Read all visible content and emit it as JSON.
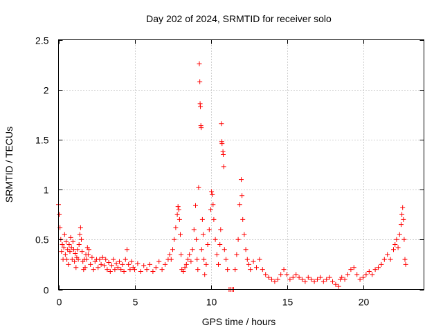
{
  "chart_data": {
    "type": "scatter",
    "title": "Day 202 of 2024, SRMTID for receiver solo",
    "xlabel": "GPS time / hours",
    "ylabel": "SRMTID / TECUs",
    "xlim": [
      0,
      24
    ],
    "ylim": [
      0,
      2.5
    ],
    "xticks": [
      0,
      5,
      10,
      15,
      20
    ],
    "yticks": [
      0,
      0.5,
      1,
      1.5,
      2,
      2.5
    ],
    "xtick_labels": [
      "0",
      "5",
      "10",
      "15",
      "20"
    ],
    "ytick_labels": [
      "0",
      "0.5",
      "1",
      "1.5",
      "2",
      "2.5"
    ],
    "grid": true,
    "marker": "+",
    "color": "#ff0000",
    "series": [
      {
        "name": "SRMTID",
        "points": [
          [
            0.0,
            0.85
          ],
          [
            0.05,
            0.75
          ],
          [
            0.1,
            0.62
          ],
          [
            0.15,
            0.5
          ],
          [
            0.2,
            0.38
          ],
          [
            0.25,
            0.45
          ],
          [
            0.3,
            0.3
          ],
          [
            0.35,
            0.42
          ],
          [
            0.4,
            0.55
          ],
          [
            0.45,
            0.35
          ],
          [
            0.5,
            0.48
          ],
          [
            0.55,
            0.3
          ],
          [
            0.6,
            0.4
          ],
          [
            0.65,
            0.25
          ],
          [
            0.7,
            0.45
          ],
          [
            0.75,
            0.38
          ],
          [
            0.8,
            0.52
          ],
          [
            0.85,
            0.42
          ],
          [
            0.9,
            0.3
          ],
          [
            0.95,
            0.48
          ],
          [
            1.0,
            0.4
          ],
          [
            1.05,
            0.28
          ],
          [
            1.1,
            0.36
          ],
          [
            1.15,
            0.22
          ],
          [
            1.2,
            0.32
          ],
          [
            1.25,
            0.4
          ],
          [
            1.3,
            0.3
          ],
          [
            1.35,
            0.45
          ],
          [
            1.4,
            0.55
          ],
          [
            1.45,
            0.62
          ],
          [
            1.5,
            0.5
          ],
          [
            1.55,
            0.38
          ],
          [
            1.6,
            0.28
          ],
          [
            1.65,
            0.2
          ],
          [
            1.7,
            0.3
          ],
          [
            1.75,
            0.22
          ],
          [
            1.8,
            0.35
          ],
          [
            1.85,
            0.3
          ],
          [
            1.9,
            0.42
          ],
          [
            1.95,
            0.35
          ],
          [
            2.0,
            0.4
          ],
          [
            2.1,
            0.25
          ],
          [
            2.2,
            0.32
          ],
          [
            2.3,
            0.2
          ],
          [
            2.4,
            0.28
          ],
          [
            2.5,
            0.3
          ],
          [
            2.6,
            0.22
          ],
          [
            2.7,
            0.3
          ],
          [
            2.8,
            0.25
          ],
          [
            2.9,
            0.32
          ],
          [
            3.0,
            0.24
          ],
          [
            3.1,
            0.3
          ],
          [
            3.2,
            0.2
          ],
          [
            3.3,
            0.27
          ],
          [
            3.4,
            0.18
          ],
          [
            3.5,
            0.24
          ],
          [
            3.6,
            0.3
          ],
          [
            3.7,
            0.2
          ],
          [
            3.8,
            0.26
          ],
          [
            3.9,
            0.22
          ],
          [
            4.0,
            0.28
          ],
          [
            4.1,
            0.2
          ],
          [
            4.2,
            0.25
          ],
          [
            4.3,
            0.18
          ],
          [
            4.4,
            0.3
          ],
          [
            4.5,
            0.4
          ],
          [
            4.6,
            0.25
          ],
          [
            4.7,
            0.2
          ],
          [
            4.8,
            0.28
          ],
          [
            4.9,
            0.22
          ],
          [
            5.0,
            0.2
          ],
          [
            5.2,
            0.26
          ],
          [
            5.4,
            0.18
          ],
          [
            5.6,
            0.24
          ],
          [
            5.8,
            0.2
          ],
          [
            6.0,
            0.25
          ],
          [
            6.2,
            0.18
          ],
          [
            6.4,
            0.22
          ],
          [
            6.6,
            0.28
          ],
          [
            6.8,
            0.2
          ],
          [
            7.0,
            0.25
          ],
          [
            7.2,
            0.3
          ],
          [
            7.3,
            0.35
          ],
          [
            7.4,
            0.3
          ],
          [
            7.5,
            0.4
          ],
          [
            7.6,
            0.5
          ],
          [
            7.7,
            0.62
          ],
          [
            7.8,
            0.75
          ],
          [
            7.85,
            0.83
          ],
          [
            7.9,
            0.8
          ],
          [
            7.95,
            0.7
          ],
          [
            8.0,
            0.55
          ],
          [
            8.05,
            0.35
          ],
          [
            8.1,
            0.2
          ],
          [
            8.2,
            0.18
          ],
          [
            8.3,
            0.22
          ],
          [
            8.4,
            0.25
          ],
          [
            8.5,
            0.3
          ],
          [
            8.6,
            0.35
          ],
          [
            8.7,
            0.28
          ],
          [
            8.8,
            0.4
          ],
          [
            8.9,
            0.6
          ],
          [
            9.0,
            0.84
          ],
          [
            9.05,
            0.5
          ],
          [
            9.1,
            0.3
          ],
          [
            9.15,
            0.2
          ],
          [
            9.2,
            1.02
          ],
          [
            9.25,
            2.26
          ],
          [
            9.28,
            2.08
          ],
          [
            9.3,
            1.86
          ],
          [
            9.32,
            1.83
          ],
          [
            9.35,
            1.64
          ],
          [
            9.37,
            1.62
          ],
          [
            9.4,
            0.4
          ],
          [
            9.45,
            0.7
          ],
          [
            9.5,
            0.55
          ],
          [
            9.55,
            0.3
          ],
          [
            9.6,
            0.15
          ],
          [
            9.7,
            0.25
          ],
          [
            9.8,
            0.45
          ],
          [
            9.9,
            0.6
          ],
          [
            10.0,
            0.8
          ],
          [
            10.05,
            0.98
          ],
          [
            10.1,
            0.95
          ],
          [
            10.15,
            0.85
          ],
          [
            10.2,
            0.7
          ],
          [
            10.3,
            0.5
          ],
          [
            10.4,
            0.35
          ],
          [
            10.5,
            0.25
          ],
          [
            10.6,
            0.45
          ],
          [
            10.65,
            0.6
          ],
          [
            10.7,
            1.66
          ],
          [
            10.72,
            1.48
          ],
          [
            10.74,
            1.46
          ],
          [
            10.8,
            1.38
          ],
          [
            10.82,
            1.35
          ],
          [
            10.85,
            1.23
          ],
          [
            10.9,
            0.4
          ],
          [
            11.0,
            0.3
          ],
          [
            11.1,
            0.2
          ],
          [
            11.2,
            0.0
          ],
          [
            11.3,
            0.0
          ],
          [
            11.4,
            0.0
          ],
          [
            11.5,
            0.0
          ],
          [
            11.6,
            0.2
          ],
          [
            11.7,
            0.35
          ],
          [
            11.8,
            0.5
          ],
          [
            11.9,
            0.85
          ],
          [
            12.0,
            1.1
          ],
          [
            12.05,
            0.94
          ],
          [
            12.1,
            0.7
          ],
          [
            12.2,
            0.55
          ],
          [
            12.3,
            0.4
          ],
          [
            12.4,
            0.3
          ],
          [
            12.5,
            0.25
          ],
          [
            12.6,
            0.2
          ],
          [
            12.8,
            0.28
          ],
          [
            13.0,
            0.22
          ],
          [
            13.2,
            0.3
          ],
          [
            13.4,
            0.2
          ],
          [
            13.6,
            0.15
          ],
          [
            13.8,
            0.12
          ],
          [
            14.0,
            0.1
          ],
          [
            14.2,
            0.08
          ],
          [
            14.4,
            0.1
          ],
          [
            14.6,
            0.15
          ],
          [
            14.8,
            0.2
          ],
          [
            15.0,
            0.15
          ],
          [
            15.2,
            0.1
          ],
          [
            15.4,
            0.12
          ],
          [
            15.6,
            0.15
          ],
          [
            15.8,
            0.12
          ],
          [
            16.0,
            0.1
          ],
          [
            16.2,
            0.08
          ],
          [
            16.4,
            0.12
          ],
          [
            16.6,
            0.1
          ],
          [
            16.8,
            0.08
          ],
          [
            17.0,
            0.1
          ],
          [
            17.2,
            0.12
          ],
          [
            17.4,
            0.08
          ],
          [
            17.6,
            0.1
          ],
          [
            17.8,
            0.12
          ],
          [
            18.0,
            0.08
          ],
          [
            18.2,
            0.05
          ],
          [
            18.4,
            0.03
          ],
          [
            18.5,
            0.1
          ],
          [
            18.6,
            0.12
          ],
          [
            18.8,
            0.1
          ],
          [
            19.0,
            0.15
          ],
          [
            19.2,
            0.2
          ],
          [
            19.4,
            0.22
          ],
          [
            19.6,
            0.15
          ],
          [
            19.8,
            0.1
          ],
          [
            20.0,
            0.12
          ],
          [
            20.2,
            0.15
          ],
          [
            20.4,
            0.18
          ],
          [
            20.6,
            0.15
          ],
          [
            20.8,
            0.2
          ],
          [
            21.0,
            0.22
          ],
          [
            21.2,
            0.25
          ],
          [
            21.4,
            0.3
          ],
          [
            21.6,
            0.35
          ],
          [
            21.8,
            0.3
          ],
          [
            22.0,
            0.4
          ],
          [
            22.1,
            0.45
          ],
          [
            22.2,
            0.5
          ],
          [
            22.3,
            0.42
          ],
          [
            22.4,
            0.55
          ],
          [
            22.5,
            0.65
          ],
          [
            22.55,
            0.75
          ],
          [
            22.6,
            0.82
          ],
          [
            22.65,
            0.7
          ],
          [
            22.7,
            0.5
          ],
          [
            22.75,
            0.3
          ],
          [
            22.8,
            0.25
          ]
        ]
      }
    ]
  }
}
